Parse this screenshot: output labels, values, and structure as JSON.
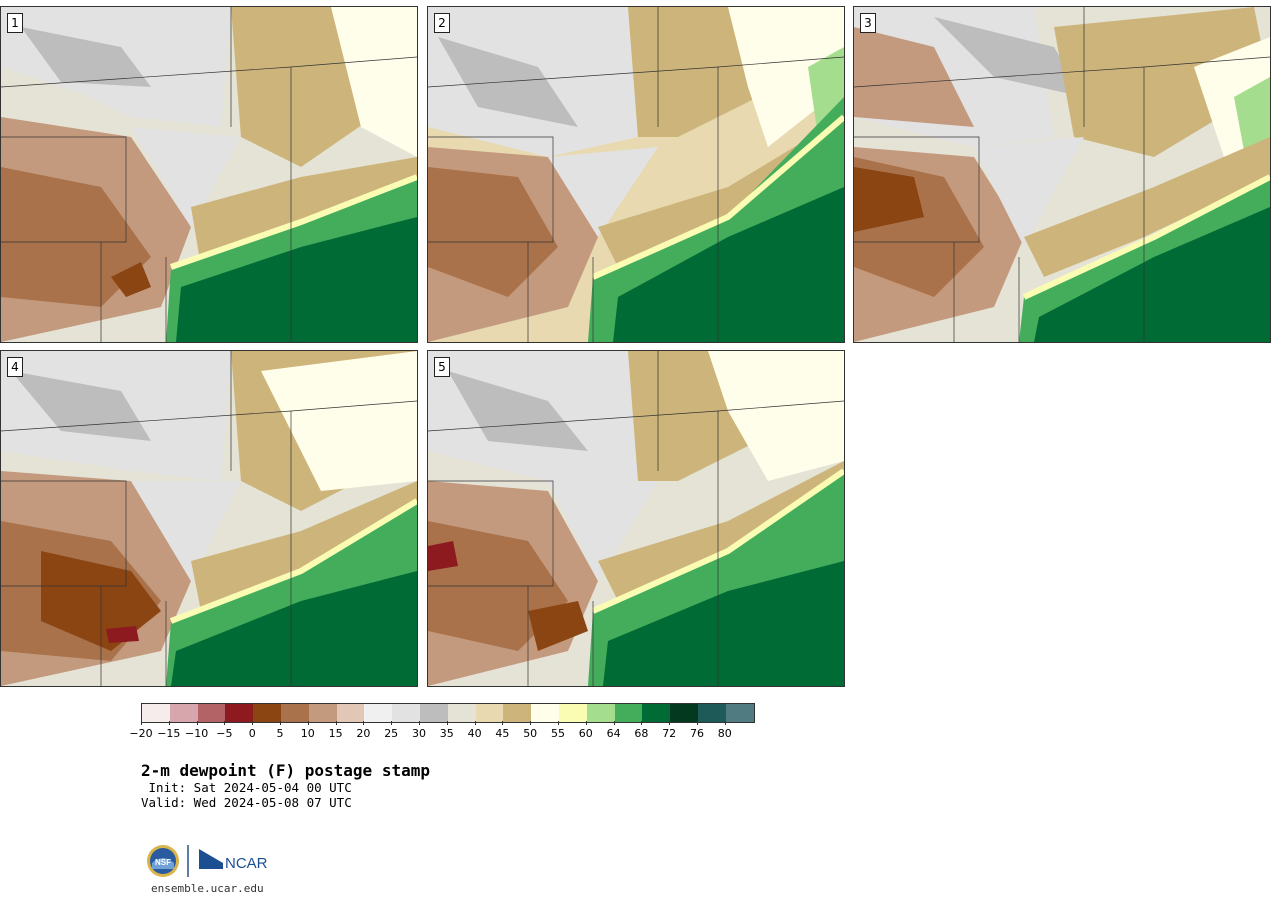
{
  "panels": [
    {
      "number": "1"
    },
    {
      "number": "2"
    },
    {
      "number": "3"
    },
    {
      "number": "4"
    },
    {
      "number": "5"
    }
  ],
  "colorbar": {
    "colors": [
      "#f7ecec",
      "#d6a6ac",
      "#b36366",
      "#8c1a1f",
      "#8b4513",
      "#a9724a",
      "#c49a7e",
      "#e2c7b6",
      "#f0f0f0",
      "#e2e2e2",
      "#bdbdbd",
      "#e4e3d6",
      "#e8d9b0",
      "#cdb47a",
      "#fffeea",
      "#fafcb4",
      "#a5dd8f",
      "#44ad5c",
      "#016b35",
      "#03391e",
      "#1e5a58",
      "#4f7b81"
    ],
    "labels": [
      "−20",
      "−15",
      "−10",
      "−5",
      "0",
      "5",
      "10",
      "15",
      "20",
      "25",
      "30",
      "35",
      "40",
      "45",
      "50",
      "55",
      "60",
      "64",
      "68",
      "72",
      "76",
      "80"
    ]
  },
  "title": "2-m dewpoint (F) postage stamp",
  "init": " Init: Sat 2024-05-04 00 UTC",
  "valid": "Valid: Wed 2024-05-08 07 UTC",
  "logo": {
    "left": "NSF",
    "right": "NCAR"
  },
  "website": "ensemble.ucar.edu"
}
